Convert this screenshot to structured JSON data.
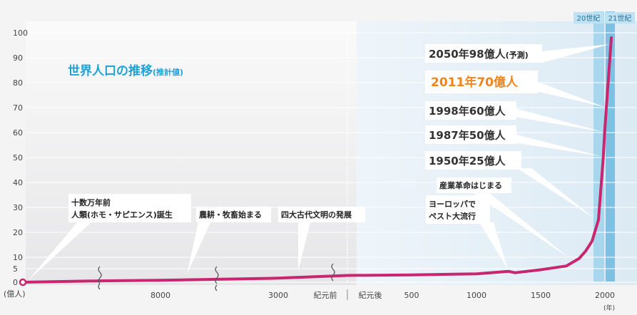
{
  "chart_data": {
    "type": "line",
    "title": "世界人口の推移",
    "title_note": "(推計値)",
    "ylabel": "(億人)",
    "xlabel": "(年)",
    "ylim": [
      0,
      100
    ],
    "y_ticks": [
      "0",
      "5",
      "10",
      "20",
      "30",
      "40",
      "50",
      "60",
      "70",
      "80",
      "90",
      "100"
    ],
    "x_ticks": [
      "8000",
      "3000",
      "紀元前",
      "紀元後",
      "500",
      "1000",
      "1500",
      "2000"
    ],
    "century_labels": [
      "20世紀",
      "21世紀"
    ],
    "line_color": "#c8266f",
    "highlight_color": "#f0841a",
    "title_color": "#1fa2d8",
    "series": [
      {
        "x": [
          "-200000",
          "-10000",
          "-8000",
          "-3000",
          "0",
          "500",
          "1000",
          "1250",
          "1300",
          "1500",
          "1700",
          "1800",
          "1850",
          "1900",
          "1950",
          "1987",
          "1998",
          "2011",
          "2050"
        ],
        "values": [
          0,
          0.5,
          0.7,
          1.5,
          2.5,
          2.7,
          3.1,
          4,
          3.5,
          4.6,
          6.2,
          9.5,
          12.5,
          16.5,
          25,
          50,
          60,
          70,
          98
        ]
      }
    ],
    "annotations": [
      {
        "text": "十数万年前",
        "text2": "人類(ホモ・サピエンス)誕生"
      },
      {
        "text": "農耕・牧畜始まる"
      },
      {
        "text": "四大古代文明の発展"
      },
      {
        "text": "ヨーロッパで",
        "text2": "ペスト大流行"
      },
      {
        "text": "産業革命はじまる"
      },
      {
        "text": "1950年25億人"
      },
      {
        "text": "1987年50億人"
      },
      {
        "text": "1998年60億人"
      },
      {
        "text": "2011年70億人"
      },
      {
        "text": "2050年98億人",
        "note": "(予測)"
      }
    ]
  }
}
